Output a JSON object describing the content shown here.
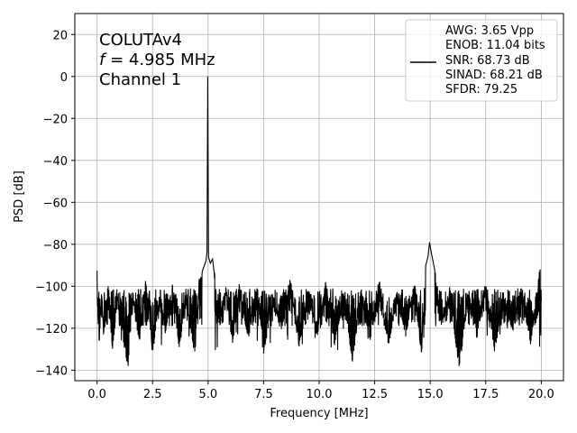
{
  "chart_data": {
    "type": "line",
    "xlabel": "Frequency [MHz]",
    "ylabel": "PSD [dB]",
    "xlim": [
      -1.0,
      21.0
    ],
    "ylim": [
      -145,
      30
    ],
    "xticks": [
      0.0,
      2.5,
      5.0,
      7.5,
      10.0,
      12.5,
      15.0,
      17.5,
      20.0
    ],
    "xtick_labels": [
      "0.0",
      "2.5",
      "5.0",
      "7.5",
      "10.0",
      "12.5",
      "15.0",
      "17.5",
      "20.0"
    ],
    "yticks": [
      -140,
      -120,
      -100,
      -80,
      -60,
      -40,
      -20,
      0,
      20
    ],
    "ytick_labels": [
      "−140",
      "−120",
      "−100",
      "−80",
      "−60",
      "−40",
      "−20",
      "0",
      "20"
    ],
    "grid": true,
    "annotation": {
      "line1": "COLUTAv4",
      "line2_var": "f",
      "line2_rest": " = 4.985 MHz",
      "line3": "Channel 1"
    },
    "legend_placement": "top-right",
    "legend_lines": [
      "AWG: 3.65 Vpp",
      "ENOB: 11.04 bits",
      "SNR: 68.73 dB",
      "SINAD: 68.21 dB",
      "SFDR: 79.25"
    ],
    "series": [
      {
        "color": "#000000",
        "noise_floor": -110,
        "noise_low": -138,
        "noise_high": -93,
        "points": [
          [
            0.0,
            -95
          ],
          [
            0.05,
            -118
          ],
          [
            0.1,
            -126
          ],
          [
            0.2,
            -104
          ],
          [
            0.3,
            -122
          ],
          [
            0.5,
            -100
          ],
          [
            0.7,
            -128
          ],
          [
            0.9,
            -106
          ],
          [
            1.1,
            -119
          ],
          [
            1.4,
            -137
          ],
          [
            1.6,
            -103
          ],
          [
            1.9,
            -125
          ],
          [
            2.2,
            -99
          ],
          [
            2.5,
            -130
          ],
          [
            2.8,
            -105
          ],
          [
            3.1,
            -121
          ],
          [
            3.4,
            -100
          ],
          [
            3.7,
            -129
          ],
          [
            4.0,
            -104
          ],
          [
            4.4,
            -131
          ],
          [
            4.6,
            -97
          ],
          [
            4.8,
            -91
          ],
          [
            4.9,
            -88
          ],
          [
            4.95,
            -84
          ],
          [
            4.985,
            0
          ],
          [
            5.02,
            -86
          ],
          [
            5.1,
            -89
          ],
          [
            5.2,
            -87
          ],
          [
            5.3,
            -96
          ],
          [
            5.5,
            -117
          ],
          [
            5.8,
            -102
          ],
          [
            6.1,
            -127
          ],
          [
            6.4,
            -99
          ],
          [
            6.8,
            -123
          ],
          [
            7.2,
            -101
          ],
          [
            7.5,
            -132
          ],
          [
            7.9,
            -104
          ],
          [
            8.3,
            -120
          ],
          [
            8.7,
            -98
          ],
          [
            9.1,
            -128
          ],
          [
            9.5,
            -103
          ],
          [
            9.9,
            -122
          ],
          [
            10.3,
            -100
          ],
          [
            10.7,
            -126
          ],
          [
            11.1,
            -104
          ],
          [
            11.5,
            -134
          ],
          [
            11.9,
            -102
          ],
          [
            12.3,
            -124
          ],
          [
            12.7,
            -99
          ],
          [
            13.1,
            -127
          ],
          [
            13.5,
            -105
          ],
          [
            13.9,
            -121
          ],
          [
            14.3,
            -100
          ],
          [
            14.6,
            -131
          ],
          [
            14.8,
            -90
          ],
          [
            14.9,
            -86
          ],
          [
            14.97,
            -79
          ],
          [
            15.05,
            -84
          ],
          [
            15.2,
            -92
          ],
          [
            15.5,
            -118
          ],
          [
            15.9,
            -102
          ],
          [
            16.3,
            -138
          ],
          [
            16.7,
            -104
          ],
          [
            17.1,
            -123
          ],
          [
            17.5,
            -100
          ],
          [
            17.9,
            -129
          ],
          [
            18.3,
            -103
          ],
          [
            18.7,
            -120
          ],
          [
            19.1,
            -101
          ],
          [
            19.5,
            -126
          ],
          [
            19.8,
            -104
          ],
          [
            19.95,
            -92
          ],
          [
            20.0,
            -107
          ]
        ]
      }
    ]
  }
}
